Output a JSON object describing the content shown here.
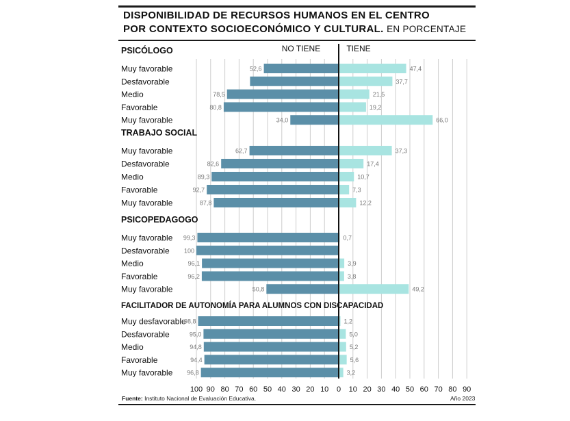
{
  "header": {
    "title_line1": "DISPONIBILIDAD DE RECURSOS HUMANOS EN EL CENTRO",
    "title_line2": "POR CONTEXTO SOCIOECONÓMICO Y CULTURAL.",
    "title_unit": "EN PORCENTAJE"
  },
  "footer": {
    "source_label": "Fuente:",
    "source_text": "Instituto Nacional de Evaluación Educativa.",
    "year": "Año 2023"
  },
  "colors": {
    "no_tiene": "#5b8fa8",
    "tiene": "#a8e4e1",
    "axis": "#111111",
    "grid": "#cccccc"
  },
  "chart_data": {
    "type": "bar",
    "orientation": "horizontal-diverging",
    "series": [
      {
        "name": "NO TIENE",
        "side": "left"
      },
      {
        "name": "TIENE",
        "side": "right"
      }
    ],
    "xlim_left": [
      100,
      0
    ],
    "xlim_right": [
      0,
      90
    ],
    "ticks_left": [
      "100",
      "90",
      "80",
      "70",
      "60",
      "50",
      "40",
      "30",
      "20",
      "10"
    ],
    "ticks_right": [
      "0",
      "10",
      "20",
      "30",
      "40",
      "50",
      "60",
      "70",
      "80",
      "90"
    ],
    "grid": true,
    "groups": [
      {
        "title": "PSICÓLOGO",
        "rows": [
          {
            "label": "Muy favorable",
            "no_tiene": 52.6,
            "tiene": 47.4,
            "no_label": "52,6",
            "si_label": "47,4"
          },
          {
            "label": "Desfavorable",
            "no_tiene": 62.3,
            "tiene": 37.7,
            "no_label": "",
            "si_label": "37,7"
          },
          {
            "label": "Medio",
            "no_tiene": 78.5,
            "tiene": 21.5,
            "no_label": "78,5",
            "si_label": "21,5"
          },
          {
            "label": "Favorable",
            "no_tiene": 80.8,
            "tiene": 19.2,
            "no_label": "80,8",
            "si_label": "19,2"
          },
          {
            "label": "Muy favorable",
            "no_tiene": 34.0,
            "tiene": 66.0,
            "no_label": "34,0",
            "si_label": "66,0"
          }
        ]
      },
      {
        "title": "TRABAJO SOCIAL",
        "rows": [
          {
            "label": "Muy favorable",
            "no_tiene": 62.7,
            "tiene": 37.3,
            "no_label": "62,7",
            "si_label": "37,3"
          },
          {
            "label": "Desfavorable",
            "no_tiene": 82.6,
            "tiene": 17.4,
            "no_label": "82,6",
            "si_label": "17,4"
          },
          {
            "label": "Medio",
            "no_tiene": 89.3,
            "tiene": 10.7,
            "no_label": "89,3",
            "si_label": "10,7"
          },
          {
            "label": "Favorable",
            "no_tiene": 92.7,
            "tiene": 7.3,
            "no_label": "92,7",
            "si_label": "7,3"
          },
          {
            "label": "Muy favorable",
            "no_tiene": 87.8,
            "tiene": 12.2,
            "no_label": "87,8",
            "si_label": "12,2"
          }
        ]
      },
      {
        "title": "PSICOPEDAGOGO",
        "rows": [
          {
            "label": "Muy favorable",
            "no_tiene": 99.3,
            "tiene": 0.7,
            "no_label": "99,3",
            "si_label": "0,7"
          },
          {
            "label": "Desfavorable",
            "no_tiene": 100,
            "tiene": 0,
            "no_label": "100",
            "si_label": ""
          },
          {
            "label": "Medio",
            "no_tiene": 96.1,
            "tiene": 3.9,
            "no_label": "96,1",
            "si_label": "3,9"
          },
          {
            "label": "Favorable",
            "no_tiene": 96.2,
            "tiene": 3.8,
            "no_label": "96,2",
            "si_label": "3,8"
          },
          {
            "label": "Muy favorable",
            "no_tiene": 50.8,
            "tiene": 49.2,
            "no_label": "50,8",
            "si_label": "49,2"
          }
        ]
      },
      {
        "title": "FACILITADOR DE AUTONOMÍA PARA ALUMNOS CON DISCAPACIDAD",
        "rows": [
          {
            "label": "Muy desfavorable",
            "no_tiene": 98.8,
            "tiene": 1.2,
            "no_label": "98,8",
            "si_label": "1,2"
          },
          {
            "label": "Desfavorable",
            "no_tiene": 95.0,
            "tiene": 5.0,
            "no_label": "95,0",
            "si_label": "5,0"
          },
          {
            "label": "Medio",
            "no_tiene": 94.8,
            "tiene": 5.2,
            "no_label": "94,8",
            "si_label": "5,2"
          },
          {
            "label": "Favorable",
            "no_tiene": 94.4,
            "tiene": 5.6,
            "no_label": "94,4",
            "si_label": "5,6"
          },
          {
            "label": "Muy favorable",
            "no_tiene": 96.8,
            "tiene": 3.2,
            "no_label": "96,8",
            "si_label": "3,2"
          }
        ]
      }
    ]
  }
}
